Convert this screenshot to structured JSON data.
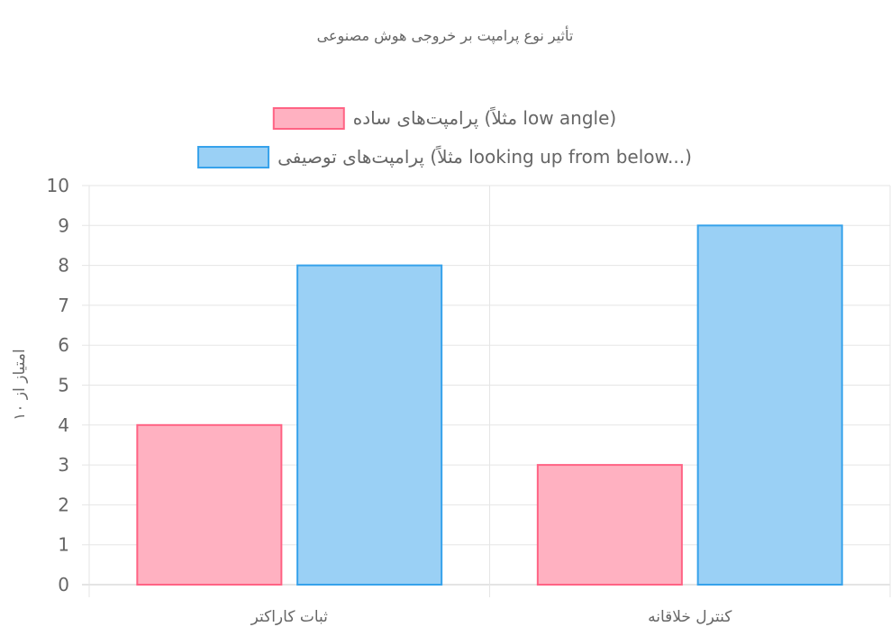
{
  "chart_data": {
    "type": "bar",
    "title": "تأثیر نوع پرامپت بر خروجی هوش مصنوعی",
    "ylabel": "امتیاز از ۱۰",
    "xlabel": "",
    "categories": [
      "ثبات کاراکتر",
      "کنترل خلاقانه"
    ],
    "series": [
      {
        "name": "پرامپت‌های ساده (مثلاً low angle)",
        "values": [
          4,
          3
        ],
        "fill": "#ffb1c1",
        "stroke": "#ff6384"
      },
      {
        "name": "پرامپت‌های توصیفی (مثلاً looking up from below...)",
        "values": [
          8,
          9
        ],
        "fill": "#9ad0f5",
        "stroke": "#36a2eb"
      }
    ],
    "ylim": [
      0,
      10
    ],
    "yticks": [
      "0",
      "1",
      "2",
      "3",
      "4",
      "5",
      "6",
      "7",
      "8",
      "9",
      "10"
    ],
    "grid": true,
    "legend_position": "top"
  }
}
